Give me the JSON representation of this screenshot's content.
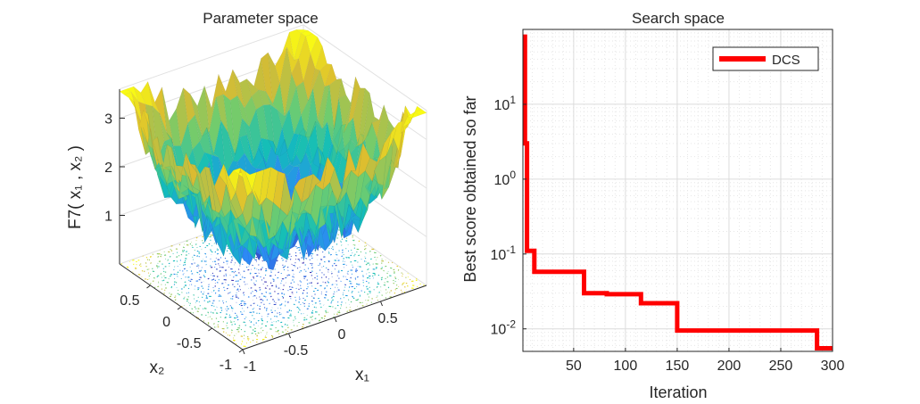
{
  "chart_data": [
    {
      "type": "surface",
      "title": "Parameter space",
      "zlabel": "F7( x₁ , x₂ )",
      "xlabel": "x₁",
      "ylabel": "x₂",
      "x_ticks": [
        "-1",
        "-0.5",
        "0",
        "0.5"
      ],
      "y_ticks": [
        "-1",
        "-0.5",
        "0",
        "0.5"
      ],
      "z_ticks": [
        "1",
        "2",
        "3"
      ],
      "xlim": [
        -1,
        1
      ],
      "ylim": [
        -1,
        1
      ],
      "zlim": [
        0,
        3.6
      ],
      "has_contour_floor": true,
      "grid": true
    },
    {
      "type": "line",
      "title": "Search space",
      "xlabel": "Iteration",
      "ylabel": "Best score obtained so far",
      "yscale": "log",
      "xlim": [
        1,
        300
      ],
      "ylim": [
        0.005,
        100
      ],
      "x_ticks": [
        "50",
        "100",
        "150",
        "200",
        "250",
        "300"
      ],
      "y_ticks": [
        "10-2",
        "10-1",
        "100",
        "101"
      ],
      "grid": true,
      "legend_position": "top-right",
      "series": [
        {
          "name": "DCS",
          "color": "#ff0000",
          "x": [
            1,
            3,
            3,
            5,
            5,
            12,
            12,
            60,
            60,
            82,
            82,
            115,
            115,
            150,
            150,
            285,
            285,
            300
          ],
          "y": [
            80,
            80,
            3,
            3,
            0.11,
            0.11,
            0.058,
            0.058,
            0.03,
            0.03,
            0.029,
            0.029,
            0.022,
            0.022,
            0.0095,
            0.0095,
            0.0055,
            0.0055
          ]
        }
      ]
    }
  ]
}
